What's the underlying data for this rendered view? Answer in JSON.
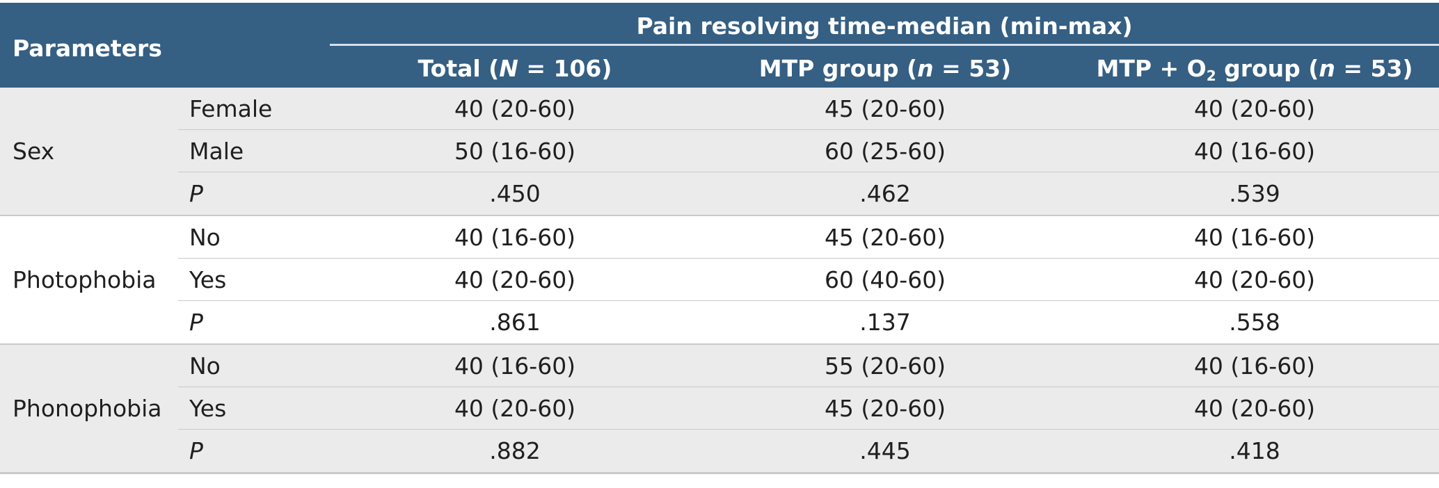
{
  "header": {
    "parameters": "Parameters",
    "span_title": "Pain resolving time-median (min-max)",
    "col1": {
      "prefix": "Total (",
      "var": "N",
      "suffix": " = 106)"
    },
    "col2": {
      "prefix": "MTP group (",
      "var": "n",
      "suffix": " = 53)"
    },
    "col3": {
      "prefix": "MTP + O",
      "subscript": "2",
      "mid": " group (",
      "var": "n",
      "suffix": " = 53)"
    }
  },
  "groups": [
    {
      "label": "Sex",
      "rows": [
        {
          "sub": "Female",
          "total": "40 (20-60)",
          "mtp": "45 (20-60)",
          "mtp_o2": "40 (20-60)"
        },
        {
          "sub": "Male",
          "total": "50 (16-60)",
          "mtp": "60 (25-60)",
          "mtp_o2": "40 (16-60)"
        },
        {
          "sub": "P",
          "total": ".450",
          "mtp": ".462",
          "mtp_o2": ".539"
        }
      ]
    },
    {
      "label": "Photophobia",
      "rows": [
        {
          "sub": "No",
          "total": "40 (16-60)",
          "mtp": "45 (20-60)",
          "mtp_o2": "40 (16-60)"
        },
        {
          "sub": "Yes",
          "total": "40 (20-60)",
          "mtp": "60 (40-60)",
          "mtp_o2": "40 (20-60)"
        },
        {
          "sub": "P",
          "total": ".861",
          "mtp": ".137",
          "mtp_o2": ".558"
        }
      ]
    },
    {
      "label": "Phonophobia",
      "rows": [
        {
          "sub": "No",
          "total": "40 (16-60)",
          "mtp": "55 (20-60)",
          "mtp_o2": "40 (16-60)"
        },
        {
          "sub": "Yes",
          "total": "40 (20-60)",
          "mtp": "45 (20-60)",
          "mtp_o2": "40 (20-60)"
        },
        {
          "sub": "P",
          "total": ".882",
          "mtp": ".445",
          "mtp_o2": ".418"
        }
      ]
    }
  ]
}
